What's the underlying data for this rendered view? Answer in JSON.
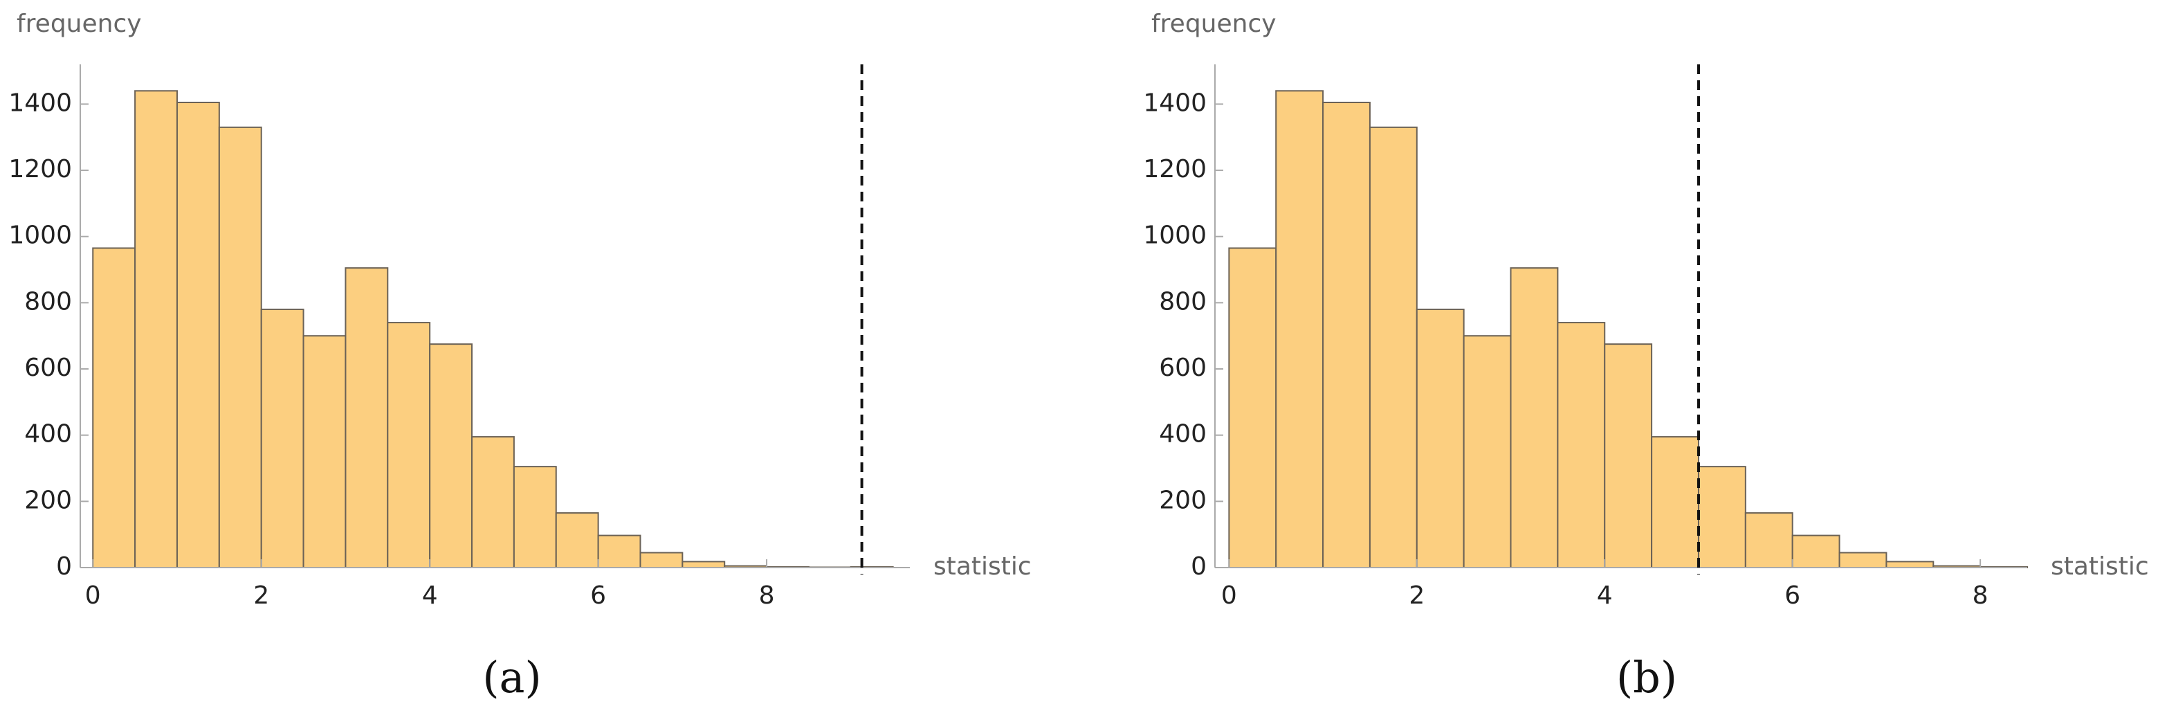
{
  "chart_data": [
    {
      "type": "histogram",
      "caption": "(a)",
      "y_label": "frequency",
      "x_label": "statistic",
      "bins": [
        0,
        0.5,
        1,
        1.5,
        2,
        2.5,
        3,
        3.5,
        4,
        4.5,
        5,
        5.5,
        6,
        6.5,
        7,
        7.5,
        8,
        8.5,
        9,
        9.5
      ],
      "values": [
        965,
        1440,
        1405,
        1330,
        780,
        700,
        905,
        740,
        675,
        395,
        305,
        165,
        97,
        45,
        18,
        5,
        2,
        1,
        2
      ],
      "color": "#fccf80",
      "edge_color": "#6b6256",
      "threshold": 9.13,
      "xlim": [
        -0.15,
        9.7
      ],
      "ylim": [
        0,
        1520
      ],
      "xticks": [
        0,
        2,
        4,
        6,
        8
      ],
      "yticks": [
        0,
        200,
        400,
        600,
        800,
        1000,
        1200,
        1400
      ]
    },
    {
      "type": "histogram",
      "caption": "(b)",
      "y_label": "frequency",
      "x_label": "statistic",
      "bins": [
        0,
        0.5,
        1,
        1.5,
        2,
        2.5,
        3,
        3.5,
        4,
        4.5,
        5,
        5.5,
        6,
        6.5,
        7,
        7.5,
        8,
        8.5
      ],
      "values": [
        965,
        1440,
        1405,
        1330,
        780,
        700,
        905,
        740,
        675,
        395,
        305,
        165,
        97,
        45,
        18,
        5,
        2
      ],
      "color": "#fccf80",
      "edge_color": "#6b6256",
      "threshold": 5,
      "xlim": [
        -0.15,
        8.5
      ],
      "ylim": [
        0,
        1520
      ],
      "xticks": [
        0,
        2,
        4,
        6,
        8
      ],
      "yticks": [
        0,
        200,
        400,
        600,
        800,
        1000,
        1200,
        1400
      ]
    }
  ]
}
